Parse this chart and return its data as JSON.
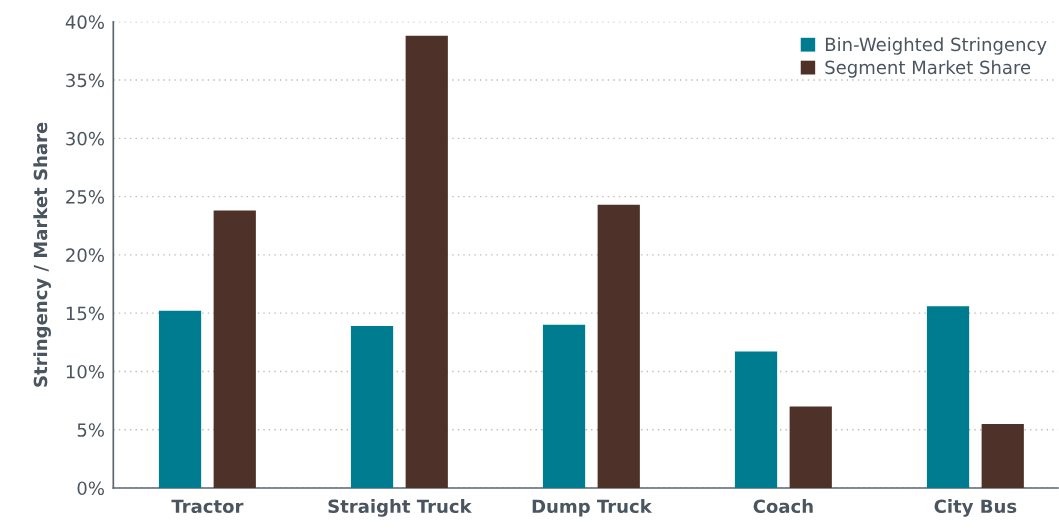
{
  "chart_data": {
    "type": "bar",
    "ylabel": "Stringency / Market Share",
    "categories": [
      "Tractor",
      "Straight Truck",
      "Dump Truck",
      "Coach",
      "City Bus"
    ],
    "series": [
      {
        "name": "Bin-Weighted Stringency",
        "color": "#007c91",
        "values": [
          15.2,
          13.9,
          14.0,
          11.7,
          15.6
        ]
      },
      {
        "name": "Segment Market Share",
        "color": "#4e3128",
        "values": [
          23.8,
          38.8,
          24.3,
          7.0,
          5.5
        ]
      }
    ],
    "ylim": [
      0,
      40
    ],
    "yticks": [
      {
        "value": 0,
        "label": "0%"
      },
      {
        "value": 5,
        "label": "5%"
      },
      {
        "value": 10,
        "label": "10%"
      },
      {
        "value": 15,
        "label": "15%"
      },
      {
        "value": 20,
        "label": "20%"
      },
      {
        "value": 25,
        "label": "25%"
      },
      {
        "value": 30,
        "label": "30%"
      },
      {
        "value": 35,
        "label": "35%"
      },
      {
        "value": 40,
        "label": "40%"
      }
    ],
    "grid": "y",
    "legend": "top right"
  }
}
